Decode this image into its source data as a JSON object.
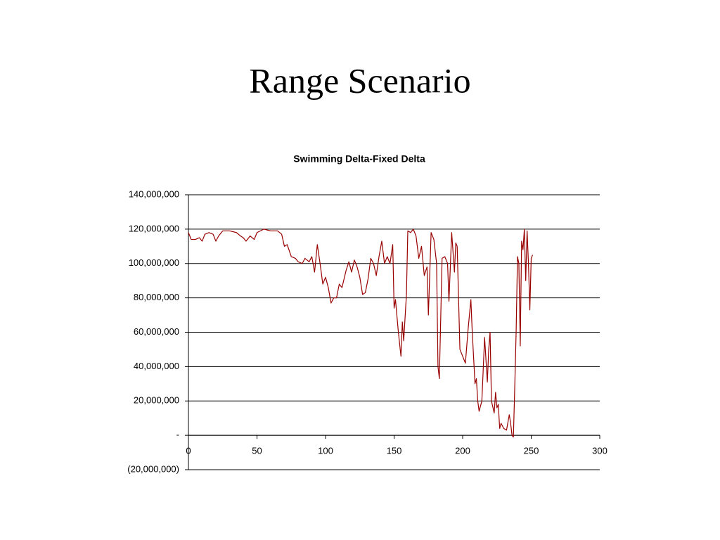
{
  "title": "Range Scenario",
  "chart_data": {
    "type": "line",
    "title": "Swimming Delta-Fixed Delta",
    "color": "#990000",
    "grid": true,
    "x": [
      0,
      2,
      5,
      8,
      10,
      12,
      15,
      18,
      20,
      22,
      25,
      30,
      35,
      38,
      40,
      42,
      45,
      48,
      50,
      55,
      60,
      65,
      68,
      70,
      72,
      75,
      78,
      80,
      83,
      85,
      88,
      90,
      92,
      94,
      96,
      98,
      100,
      102,
      104,
      106,
      108,
      110,
      112,
      115,
      117,
      119,
      121,
      123,
      125,
      127,
      129,
      131,
      133,
      135,
      137,
      139,
      141,
      143,
      145,
      147,
      149,
      150,
      151,
      153,
      155,
      156,
      157,
      159,
      160,
      162,
      164,
      166,
      168,
      170,
      172,
      174,
      175,
      177,
      179,
      181,
      182,
      183,
      185,
      187,
      189,
      190,
      192,
      194,
      195,
      196,
      198,
      200,
      202,
      204,
      206,
      207,
      209,
      210,
      211,
      212,
      214,
      216,
      217,
      218,
      219,
      220,
      221,
      223,
      224,
      225,
      226,
      227,
      228,
      230,
      232,
      234,
      235,
      236,
      237,
      238,
      239,
      240,
      241,
      242,
      243,
      244,
      245,
      246,
      247,
      248,
      249,
      250,
      251
    ],
    "values": [
      118000000,
      114000000,
      114000000,
      115000000,
      113000000,
      117000000,
      118000000,
      117000000,
      113000000,
      116000000,
      119000000,
      119000000,
      118000000,
      116000000,
      115000000,
      113000000,
      116000000,
      114000000,
      118000000,
      120000000,
      119000000,
      119000000,
      117000000,
      110000000,
      111000000,
      104000000,
      103000000,
      101000000,
      100000000,
      103000000,
      101000000,
      104000000,
      95000000,
      111000000,
      100000000,
      88000000,
      92000000,
      86000000,
      77000000,
      80000000,
      80000000,
      88000000,
      86000000,
      96000000,
      101000000,
      95000000,
      102000000,
      98000000,
      92000000,
      82000000,
      83000000,
      91000000,
      103000000,
      100000000,
      93000000,
      104000000,
      113000000,
      100000000,
      104000000,
      100000000,
      111000000,
      74000000,
      79000000,
      61000000,
      46000000,
      66000000,
      55000000,
      82000000,
      119000000,
      118000000,
      120000000,
      116000000,
      103000000,
      110000000,
      93000000,
      98000000,
      70000000,
      118000000,
      114000000,
      100000000,
      40000000,
      33000000,
      103000000,
      104000000,
      100000000,
      78000000,
      118000000,
      95000000,
      112000000,
      110000000,
      50000000,
      46000000,
      42000000,
      62000000,
      79000000,
      60000000,
      30000000,
      33000000,
      20000000,
      14000000,
      20000000,
      57000000,
      44000000,
      31000000,
      50000000,
      60000000,
      20000000,
      13000000,
      25000000,
      16000000,
      18000000,
      4000000,
      7000000,
      4000000,
      3000000,
      12000000,
      7000000,
      0,
      -1000000,
      28000000,
      60000000,
      104000000,
      100000000,
      52000000,
      113000000,
      108000000,
      120000000,
      90000000,
      119000000,
      100000000,
      73000000,
      103000000,
      105000000
    ],
    "xlim": [
      0,
      300
    ],
    "xticks": [
      0,
      50,
      100,
      150,
      200,
      250,
      300
    ],
    "ylim": [
      -20000000,
      140000000
    ],
    "yticks": [
      {
        "value": -20000000,
        "label": "(20,000,000)"
      },
      {
        "value": 0,
        "label": "-"
      },
      {
        "value": 20000000,
        "label": "20,000,000"
      },
      {
        "value": 40000000,
        "label": "40,000,000"
      },
      {
        "value": 60000000,
        "label": "60,000,000"
      },
      {
        "value": 80000000,
        "label": "80,000,000"
      },
      {
        "value": 100000000,
        "label": "100,000,000"
      },
      {
        "value": 120000000,
        "label": "120,000,000"
      },
      {
        "value": 140000000,
        "label": "140,000,000"
      }
    ]
  }
}
